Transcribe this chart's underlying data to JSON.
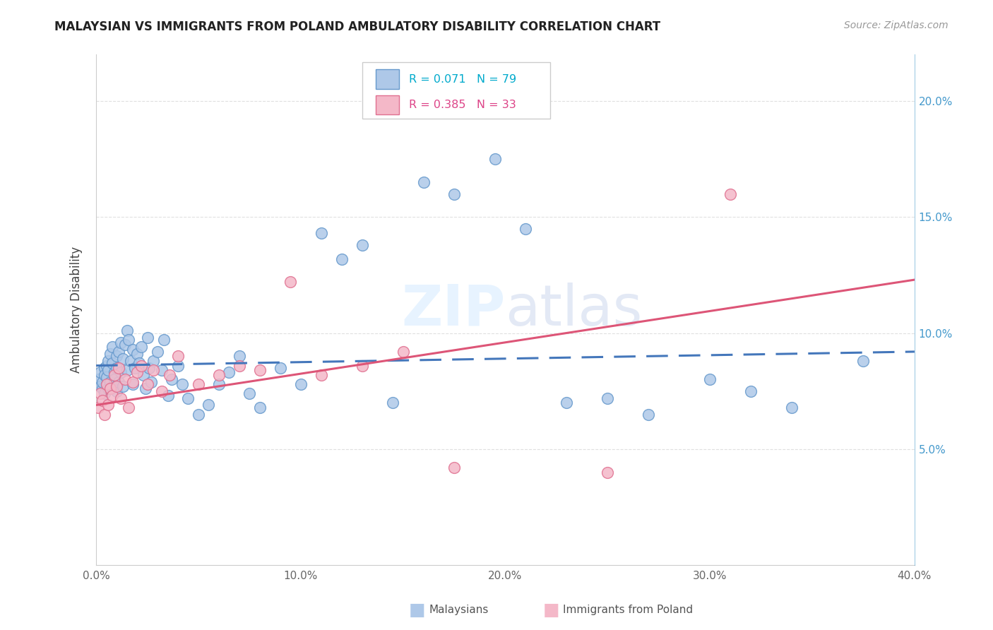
{
  "title": "MALAYSIAN VS IMMIGRANTS FROM POLAND AMBULATORY DISABILITY CORRELATION CHART",
  "source": "Source: ZipAtlas.com",
  "ylabel": "Ambulatory Disability",
  "xlim": [
    0.0,
    0.4
  ],
  "ylim": [
    0.0,
    0.22
  ],
  "xticks": [
    0.0,
    0.1,
    0.2,
    0.3,
    0.4
  ],
  "xticklabels": [
    "0.0%",
    "10.0%",
    "20.0%",
    "30.0%",
    "40.0%"
  ],
  "yticks_right": [
    0.05,
    0.1,
    0.15,
    0.2
  ],
  "yticklabels_right": [
    "5.0%",
    "10.0%",
    "15.0%",
    "20.0%"
  ],
  "color_blue_fill": "#aec8e8",
  "color_blue_edge": "#6699cc",
  "color_pink_fill": "#f4b8c8",
  "color_pink_edge": "#e07090",
  "color_blue_line": "#4477bb",
  "color_pink_line": "#dd5577",
  "background": "#ffffff",
  "watermark": "ZIPatlas",
  "grid_color": "#dddddd",
  "right_axis_color": "#4499cc",
  "title_color": "#222222",
  "source_color": "#999999",
  "ylabel_color": "#444444",
  "xtick_color": "#666666",
  "legend_text_blue": "#00aacc",
  "legend_text_pink": "#dd4488",
  "malaysians_x": [
    0.001,
    0.002,
    0.002,
    0.003,
    0.003,
    0.004,
    0.004,
    0.004,
    0.005,
    0.005,
    0.005,
    0.006,
    0.006,
    0.006,
    0.007,
    0.007,
    0.008,
    0.008,
    0.008,
    0.009,
    0.009,
    0.01,
    0.01,
    0.01,
    0.011,
    0.011,
    0.012,
    0.012,
    0.013,
    0.013,
    0.014,
    0.015,
    0.015,
    0.016,
    0.017,
    0.018,
    0.018,
    0.019,
    0.02,
    0.021,
    0.022,
    0.023,
    0.024,
    0.025,
    0.026,
    0.027,
    0.028,
    0.03,
    0.032,
    0.033,
    0.035,
    0.037,
    0.04,
    0.042,
    0.045,
    0.05,
    0.055,
    0.06,
    0.065,
    0.07,
    0.075,
    0.08,
    0.09,
    0.1,
    0.11,
    0.12,
    0.13,
    0.145,
    0.16,
    0.175,
    0.195,
    0.21,
    0.23,
    0.25,
    0.27,
    0.3,
    0.32,
    0.34,
    0.375
  ],
  "malaysians_y": [
    0.08,
    0.077,
    0.083,
    0.076,
    0.079,
    0.085,
    0.082,
    0.074,
    0.086,
    0.078,
    0.081,
    0.088,
    0.076,
    0.084,
    0.091,
    0.079,
    0.087,
    0.094,
    0.076,
    0.083,
    0.08,
    0.09,
    0.085,
    0.075,
    0.092,
    0.079,
    0.096,
    0.083,
    0.089,
    0.077,
    0.095,
    0.101,
    0.084,
    0.097,
    0.088,
    0.093,
    0.078,
    0.085,
    0.091,
    0.087,
    0.094,
    0.082,
    0.076,
    0.098,
    0.085,
    0.079,
    0.088,
    0.092,
    0.084,
    0.097,
    0.073,
    0.08,
    0.086,
    0.078,
    0.072,
    0.065,
    0.069,
    0.078,
    0.083,
    0.09,
    0.074,
    0.068,
    0.085,
    0.078,
    0.143,
    0.132,
    0.138,
    0.07,
    0.165,
    0.16,
    0.175,
    0.145,
    0.07,
    0.072,
    0.065,
    0.08,
    0.075,
    0.068,
    0.088
  ],
  "immigrants_x": [
    0.001,
    0.002,
    0.003,
    0.004,
    0.005,
    0.006,
    0.007,
    0.008,
    0.009,
    0.01,
    0.011,
    0.012,
    0.014,
    0.016,
    0.018,
    0.02,
    0.022,
    0.025,
    0.028,
    0.032,
    0.036,
    0.04,
    0.05,
    0.06,
    0.07,
    0.08,
    0.095,
    0.11,
    0.13,
    0.15,
    0.175,
    0.31,
    0.25
  ],
  "immigrants_y": [
    0.068,
    0.074,
    0.071,
    0.065,
    0.078,
    0.069,
    0.076,
    0.073,
    0.082,
    0.077,
    0.085,
    0.072,
    0.08,
    0.068,
    0.079,
    0.083,
    0.086,
    0.078,
    0.084,
    0.075,
    0.082,
    0.09,
    0.078,
    0.082,
    0.086,
    0.084,
    0.122,
    0.082,
    0.086,
    0.092,
    0.042,
    0.16,
    0.04
  ]
}
